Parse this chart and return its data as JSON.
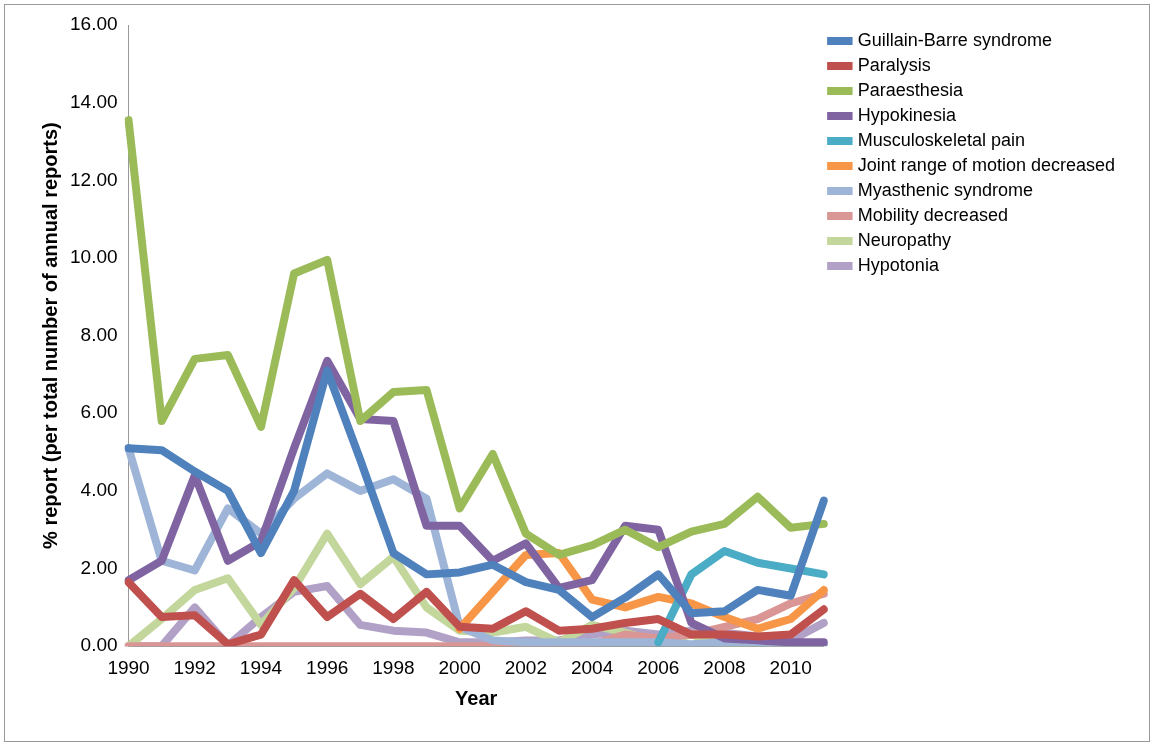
{
  "chart_data": {
    "type": "line",
    "xlabel": "Year",
    "ylabel": "% report (per total number of annual reports)",
    "categories": [
      "1990",
      null,
      "1992",
      null,
      "1994",
      null,
      "1996",
      null,
      "1998",
      null,
      "2000",
      null,
      "2002",
      null,
      "2004",
      null,
      "2006",
      null,
      "2008",
      null,
      "2010",
      null
    ],
    "ylim": [
      0,
      16
    ],
    "yticks": [
      {
        "value": 0,
        "label": "0.00"
      },
      {
        "value": 2,
        "label": "2.00"
      },
      {
        "value": 4,
        "label": "4.00"
      },
      {
        "value": 6,
        "label": "6.00"
      },
      {
        "value": 8,
        "label": "8.00"
      },
      {
        "value": 10,
        "label": "10.00"
      },
      {
        "value": 12,
        "label": "12.00"
      },
      {
        "value": 14,
        "label": "14.00"
      },
      {
        "value": 16,
        "label": "16.00"
      }
    ],
    "grid": false,
    "legend": "right",
    "marker": "none",
    "line_style": "solid",
    "series": [
      {
        "name": "Guillain-Barre syndrome",
        "color": "#4f81bd",
        "values": [
          5.1,
          5.05,
          4.5,
          4.0,
          2.4,
          4.0,
          7.1,
          4.8,
          2.4,
          1.85,
          1.9,
          2.1,
          1.65,
          1.45,
          0.75,
          1.25,
          1.85,
          0.85,
          0.9,
          1.45,
          1.3,
          3.75
        ]
      },
      {
        "name": "Paralysis",
        "color": "#c0504d",
        "values": [
          1.65,
          0.75,
          0.8,
          0.05,
          0.3,
          1.7,
          0.75,
          1.35,
          0.7,
          1.4,
          0.5,
          0.45,
          0.9,
          0.4,
          0.45,
          0.6,
          0.7,
          0.3,
          0.3,
          0.25,
          0.3,
          0.95
        ]
      },
      {
        "name": "Paraesthesia",
        "color": "#9bbb59",
        "values": [
          13.55,
          5.8,
          7.4,
          7.5,
          5.65,
          9.6,
          9.95,
          5.8,
          6.55,
          6.6,
          3.55,
          4.95,
          2.9,
          2.35,
          2.6,
          3.0,
          2.55,
          2.95,
          3.15,
          3.85,
          3.05,
          3.15
        ]
      },
      {
        "name": "Hypokinesia",
        "color": "#8064a2",
        "values": [
          1.7,
          2.2,
          4.4,
          2.2,
          2.7,
          5.1,
          7.35,
          5.85,
          5.8,
          3.1,
          3.1,
          2.2,
          2.65,
          1.5,
          1.7,
          3.1,
          3.0,
          0.6,
          0.2,
          0.15,
          0.1,
          0.1
        ]
      },
      {
        "name": "Musculoskeletal pain",
        "color": "#4bacc6",
        "values": [
          null,
          null,
          null,
          null,
          null,
          null,
          null,
          null,
          null,
          null,
          null,
          null,
          null,
          null,
          null,
          null,
          0.1,
          1.85,
          2.45,
          2.15,
          2.0,
          1.85
        ]
      },
      {
        "name": "Joint range of motion decreased",
        "color": "#f79646",
        "values": [
          null,
          null,
          null,
          null,
          null,
          null,
          null,
          null,
          null,
          null,
          0.45,
          1.4,
          2.35,
          2.4,
          1.2,
          1.0,
          1.27,
          1.1,
          0.75,
          0.45,
          0.7,
          1.45
        ]
      },
      {
        "name": "Myasthenic syndrome",
        "color": "#9eb5d8",
        "values": [
          5.1,
          2.2,
          1.95,
          3.55,
          2.9,
          3.8,
          4.45,
          4.0,
          4.3,
          3.8,
          0.5,
          0.15,
          0.1,
          0.1,
          0.1,
          0.1,
          0.1,
          0.05,
          0.1,
          0.1,
          0.05,
          0.05
        ]
      },
      {
        "name": "Mobility decreased",
        "color": "#d99694",
        "values": [
          0,
          0,
          0,
          0,
          0,
          0,
          0,
          0,
          0,
          0,
          0,
          0,
          0,
          0.05,
          0.05,
          0.3,
          0.2,
          0.3,
          0.5,
          0.7,
          1.1,
          1.35
        ]
      },
      {
        "name": "Neuropathy",
        "color": "#c3d69b",
        "values": [
          0,
          0.7,
          1.45,
          1.75,
          0.55,
          1.5,
          2.9,
          1.6,
          2.3,
          1.0,
          0.4,
          0.35,
          0.5,
          0.1,
          0.55,
          0.35,
          0.1,
          0.3,
          0.05,
          0.05,
          0.05,
          0.05
        ]
      },
      {
        "name": "Hypotonia",
        "color": "#b2a1c7",
        "values": [
          0,
          0,
          1.0,
          0.02,
          0.75,
          1.4,
          1.55,
          0.55,
          0.4,
          0.35,
          0.1,
          0.1,
          0.15,
          0.15,
          0.3,
          0.4,
          0.3,
          0.4,
          0.35,
          0.25,
          0.15,
          0.6
        ]
      }
    ]
  }
}
